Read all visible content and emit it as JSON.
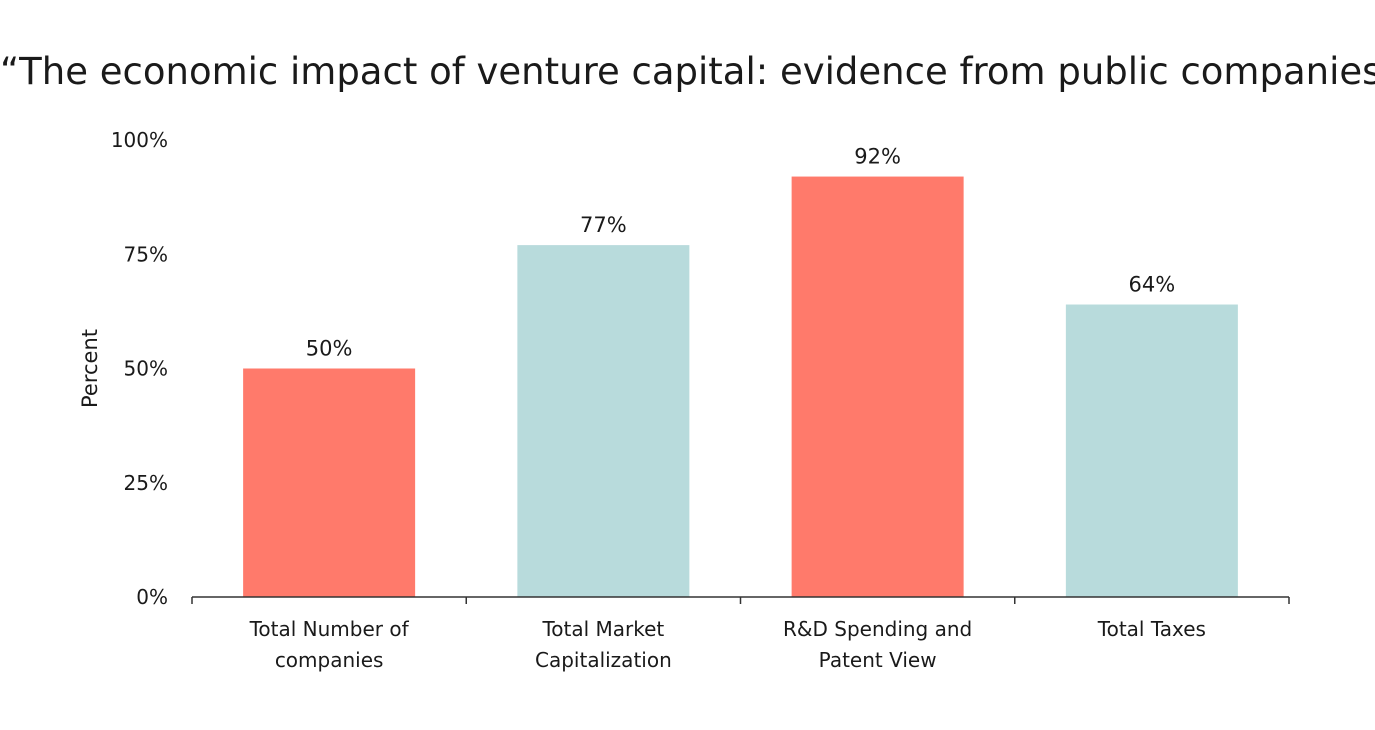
{
  "chart_data": {
    "type": "bar",
    "title": "“The economic impact of venture capital: evidence from public companies”",
    "ylabel": "Percent",
    "xlabel": "",
    "categories": [
      [
        "Total Number of",
        "companies"
      ],
      [
        "Total Market",
        "Capitalization"
      ],
      [
        "R&D Spending and",
        "Patent View"
      ],
      [
        "Total Taxes"
      ]
    ],
    "values": [
      50,
      77,
      92,
      64
    ],
    "value_labels": [
      "50%",
      "77%",
      "92%",
      "64%"
    ],
    "bar_colors": [
      "#ff7a6b",
      "#b8dbdc",
      "#ff7a6b",
      "#b8dbdc"
    ],
    "ylim": [
      0,
      100
    ],
    "yticks": [
      0,
      25,
      50,
      75,
      100
    ],
    "ytick_labels": [
      "0%",
      "25%",
      "50%",
      "75%",
      "100%"
    ],
    "grid": false,
    "legend": "none"
  }
}
